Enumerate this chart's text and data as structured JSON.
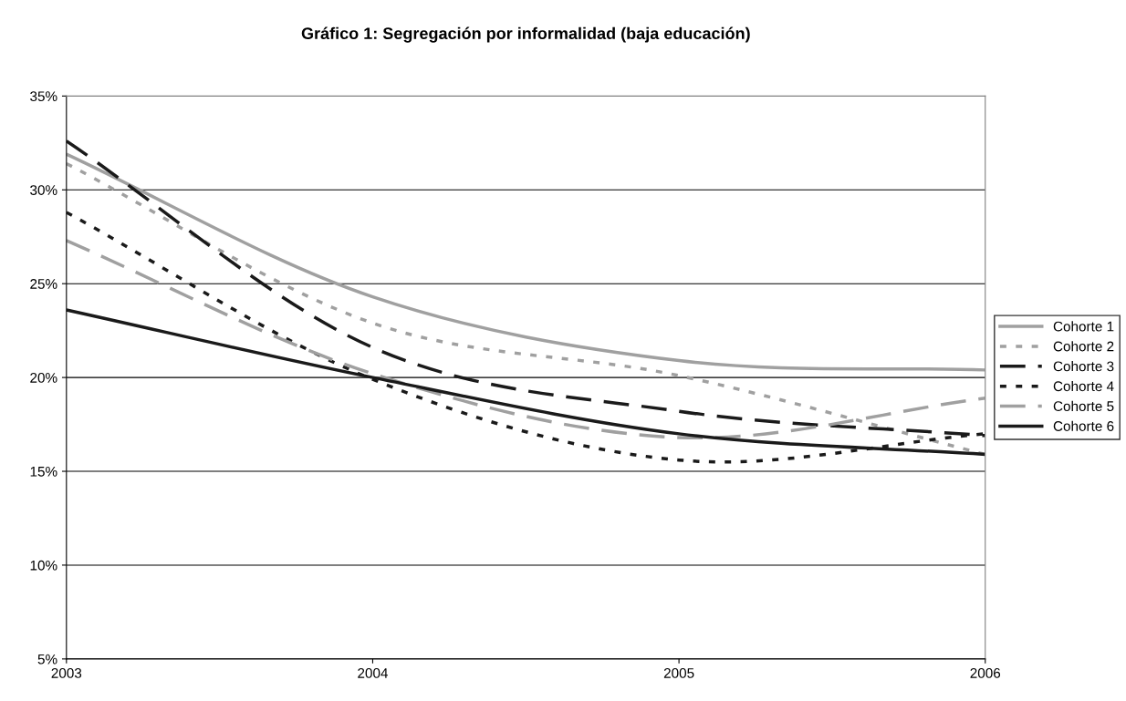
{
  "chart_data": {
    "type": "line",
    "title": "Gráfico 1: Segregación por informalidad (baja educación)",
    "x": [
      2003,
      2004,
      2005,
      2006
    ],
    "xlim": [
      2003,
      2006
    ],
    "xticks": [
      2003,
      2004,
      2005,
      2006
    ],
    "ylim": [
      5,
      35
    ],
    "yticks": [
      {
        "value": 5,
        "label": "5%"
      },
      {
        "value": 10,
        "label": "10%"
      },
      {
        "value": 15,
        "label": "15%"
      },
      {
        "value": 20,
        "label": "20%"
      },
      {
        "value": 25,
        "label": "25%"
      },
      {
        "value": 30,
        "label": "30%"
      },
      {
        "value": 35,
        "label": "35%"
      }
    ],
    "grid": "y",
    "legend": "right",
    "marker": "none",
    "series": [
      {
        "name": "Cohorte 1",
        "color": "#a0a0a0",
        "line_style": "solid",
        "values": [
          31.9,
          24.3,
          20.9,
          20.4
        ]
      },
      {
        "name": "Cohorte 2",
        "color": "#a0a0a0",
        "line_style": "dotted",
        "values": [
          31.4,
          22.9,
          20.1,
          15.9
        ]
      },
      {
        "name": "Cohorte 3",
        "color": "#1a1a1a",
        "line_style": "dashed",
        "values": [
          32.6,
          21.6,
          18.2,
          16.9
        ]
      },
      {
        "name": "Cohorte 4",
        "color": "#1a1a1a",
        "line_style": "dotted",
        "values": [
          28.8,
          19.9,
          15.6,
          17.0
        ]
      },
      {
        "name": "Cohorte 5",
        "color": "#a0a0a0",
        "line_style": "dashed",
        "values": [
          27.3,
          20.2,
          16.8,
          18.9
        ]
      },
      {
        "name": "Cohorte 6",
        "color": "#1a1a1a",
        "line_style": "solid",
        "values": [
          23.6,
          20.0,
          17.0,
          15.9
        ]
      }
    ]
  }
}
